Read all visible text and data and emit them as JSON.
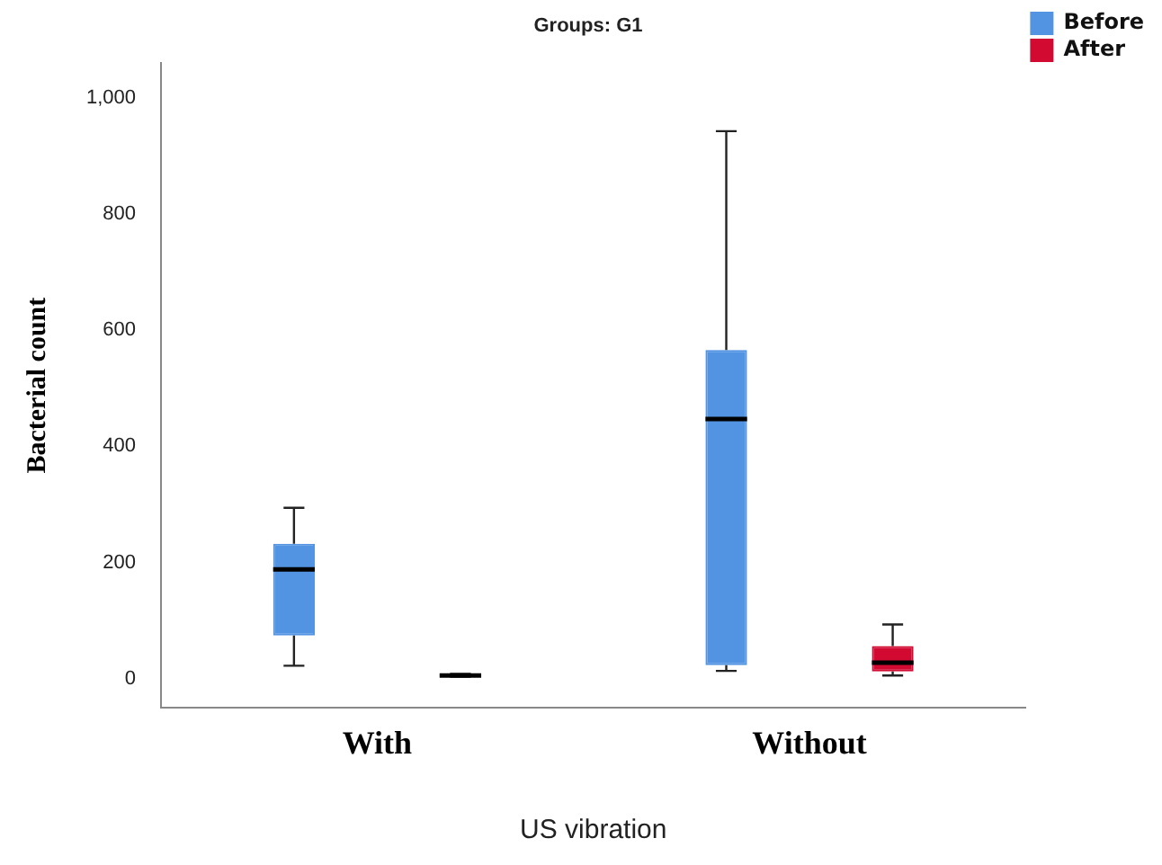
{
  "chart_data": {
    "type": "box",
    "title": "Groups: G1",
    "xlabel": "US vibration",
    "ylabel": "Bacterial count",
    "categories": [
      "With",
      "Without"
    ],
    "series": [
      {
        "name": "Before",
        "color": "#5294e2",
        "boxes": [
          {
            "low": 22,
            "q1": 74,
            "median": 188,
            "q3": 232,
            "high": 294
          },
          {
            "low": 13,
            "q1": 23,
            "median": 447,
            "q3": 566,
            "high": 943
          }
        ]
      },
      {
        "name": "After",
        "color": "#d20a32",
        "boxes": [
          {
            "low": 3,
            "q1": 4,
            "median": 5,
            "q3": 6,
            "high": 8
          },
          {
            "low": 5,
            "q1": 12,
            "median": 27,
            "q3": 56,
            "high": 93
          }
        ]
      }
    ],
    "ylim": [
      -50,
      1060
    ],
    "yticks": [
      0,
      200,
      400,
      600,
      800,
      {
        "value": 1000,
        "label": "1,000"
      }
    ],
    "grid": false,
    "legend": "top right"
  }
}
